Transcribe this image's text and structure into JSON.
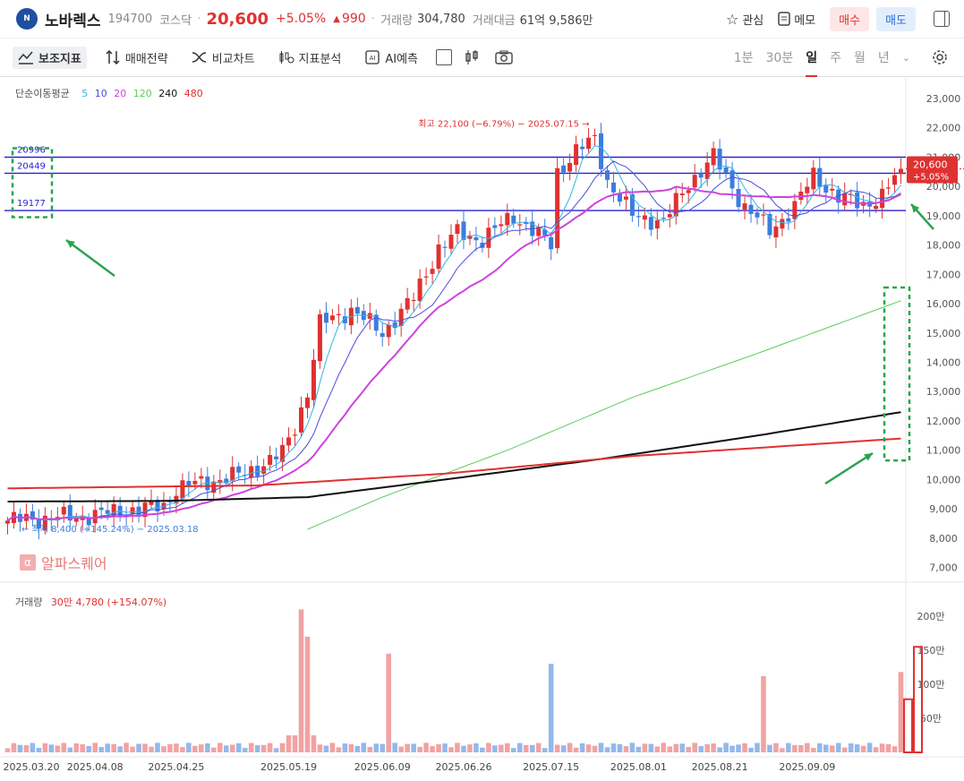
{
  "header": {
    "logo_text": "N",
    "name": "노바렉스",
    "code": "194700",
    "market": "코스닥",
    "price": "20,600",
    "change_pct": "+5.05%",
    "change_abs": "990",
    "volume_label": "거래량",
    "volume": "304,780",
    "amount_label": "거래대금",
    "amount": "61억 9,586만",
    "watch_label": "관심",
    "memo_label": "메모",
    "buy_label": "매수",
    "sell_label": "매도"
  },
  "toolbar": {
    "tools": [
      "보조지표",
      "매매전략",
      "비교차트",
      "지표분석",
      "AI예측"
    ],
    "periods": [
      "1분",
      "30분",
      "일",
      "주",
      "월",
      "년"
    ],
    "selected_period": "일"
  },
  "ma_legend": {
    "label": "단순이동평균",
    "items": [
      {
        "label": "5",
        "color": "#33b5e5"
      },
      {
        "label": "10",
        "color": "#4b4bdc"
      },
      {
        "label": "20",
        "color": "#cc44dd"
      },
      {
        "label": "120",
        "color": "#5ccc5c"
      },
      {
        "label": "240",
        "color": "#111111"
      },
      {
        "label": "480",
        "color": "#e03131"
      }
    ]
  },
  "volume_legend": {
    "label": "거래량",
    "value": "30만 4,780 (+154.07%)"
  },
  "watermark": "알파스퀘어",
  "colors": {
    "up": "#e03131",
    "down": "#3b7ddd",
    "up_vol": "#f2a2a2",
    "down_vol": "#93b8ec",
    "hline": "#2a22d0",
    "annot": "#2aa44f"
  },
  "chart_data": {
    "type": "candlestick",
    "price_axis": {
      "ticks": [
        "7,000",
        "8,000",
        "9,000",
        "10,000",
        "11,000",
        "12,000",
        "13,000",
        "14,000",
        "15,000",
        "16,000",
        "17,000",
        "18,000",
        "19,000",
        "20,000",
        "21,000",
        "22,000",
        "23,000"
      ],
      "ylim": [
        6500,
        23700
      ]
    },
    "volume_axis": {
      "ticks": [
        "50만",
        "100만",
        "150만",
        "200만"
      ]
    },
    "x_dates": [
      "2025.03.20",
      "2025.04.08",
      "2025.04.25",
      "2025.05.19",
      "2025.06.09",
      "2025.06.26",
      "2025.07.15",
      "2025.08.01",
      "2025.08.21",
      "2025.09.09"
    ],
    "horizontal_lines": [
      20996,
      20449,
      19177
    ],
    "hline_labels": [
      "20996",
      "20449",
      "19177"
    ],
    "current_price_tag": {
      "price": "20,600",
      "pct": "+5.05%"
    },
    "high_annotation": "최고 22,100 (−6.79%) − 2025.07.15",
    "low_annotation": "최저 8,400 (+145.24%) − 2025.03.18",
    "close_path": [
      [
        0,
        8600
      ],
      [
        12,
        8750
      ],
      [
        25,
        9100
      ],
      [
        27,
        9700
      ],
      [
        38,
        10200
      ],
      [
        44,
        10900
      ],
      [
        46,
        11800
      ],
      [
        48,
        13000
      ],
      [
        50,
        15300
      ],
      [
        55,
        15800
      ],
      [
        60,
        15000
      ],
      [
        65,
        16200
      ],
      [
        69,
        17900
      ],
      [
        72,
        18400
      ],
      [
        76,
        18200
      ],
      [
        81,
        19000
      ],
      [
        87,
        18000
      ],
      [
        88,
        20500
      ],
      [
        91,
        21200
      ],
      [
        94,
        21600
      ],
      [
        96,
        20200
      ],
      [
        100,
        19000
      ],
      [
        105,
        18800
      ],
      [
        109,
        20100
      ],
      [
        113,
        21000
      ],
      [
        118,
        19300
      ],
      [
        122,
        18500
      ],
      [
        126,
        19300
      ],
      [
        129,
        20400
      ],
      [
        133,
        19600
      ],
      [
        137,
        19400
      ],
      [
        140,
        19650
      ],
      [
        143,
        20600
      ]
    ],
    "ma120_path": [
      [
        48,
        8300
      ],
      [
        60,
        9400
      ],
      [
        80,
        11000
      ],
      [
        100,
        12800
      ],
      [
        120,
        14300
      ],
      [
        143,
        16100
      ]
    ],
    "ma240_path": [
      [
        0,
        9250
      ],
      [
        25,
        9270
      ],
      [
        48,
        9400
      ],
      [
        70,
        10000
      ],
      [
        95,
        10700
      ],
      [
        120,
        11500
      ],
      [
        143,
        12300
      ]
    ],
    "ma480_path": [
      [
        0,
        9700
      ],
      [
        40,
        9800
      ],
      [
        70,
        10200
      ],
      [
        100,
        10800
      ],
      [
        143,
        11400
      ]
    ],
    "volume_spikes": [
      [
        47,
        210
      ],
      [
        48,
        170
      ],
      [
        61,
        145
      ],
      [
        87,
        130
      ],
      [
        121,
        112
      ],
      [
        143,
        118
      ]
    ]
  }
}
